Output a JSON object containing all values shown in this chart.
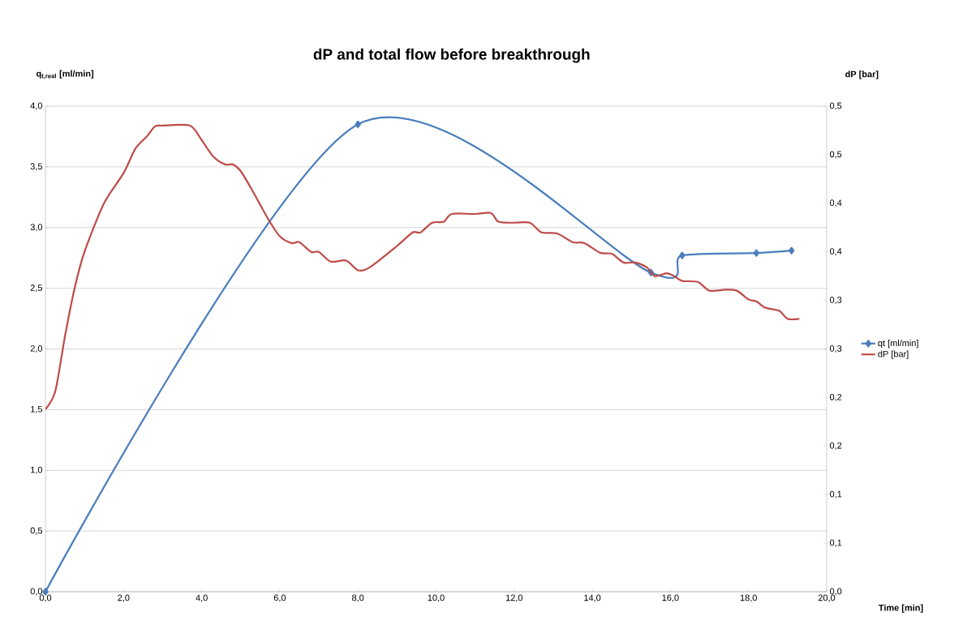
{
  "chart_data": {
    "type": "line",
    "title": "dP and total flow before breakthrough",
    "xlabel": "Time [min]",
    "ylabel": "q$_{t,real}$ [ml/min]",
    "y2label": "dP [bar]",
    "xlim": [
      0,
      20
    ],
    "ylim": [
      0,
      4
    ],
    "y2lim": [
      0,
      0.5
    ],
    "xticks": [
      {
        "value": 0,
        "label": "0,0"
      },
      {
        "value": 2,
        "label": "2,0"
      },
      {
        "value": 4,
        "label": "4,0"
      },
      {
        "value": 6,
        "label": "6,0"
      },
      {
        "value": 8,
        "label": "8,0"
      },
      {
        "value": 10,
        "label": "10,0"
      },
      {
        "value": 12,
        "label": "12,0"
      },
      {
        "value": 14,
        "label": "14,0"
      },
      {
        "value": 16,
        "label": "16,0"
      },
      {
        "value": 18,
        "label": "18,0"
      },
      {
        "value": 20,
        "label": "20,0"
      }
    ],
    "yticks": [
      {
        "value": 0,
        "label": "0,0"
      },
      {
        "value": 0.5,
        "label": "0,5"
      },
      {
        "value": 1,
        "label": "1,0"
      },
      {
        "value": 1.5,
        "label": "1,5"
      },
      {
        "value": 2,
        "label": "2,0"
      },
      {
        "value": 2.5,
        "label": "2,5"
      },
      {
        "value": 3,
        "label": "3,0"
      },
      {
        "value": 3.5,
        "label": "3,5"
      },
      {
        "value": 4,
        "label": "4,0"
      }
    ],
    "y2ticks": [
      {
        "value": 0,
        "label": "0,0"
      },
      {
        "value": 0.05,
        "label": "0,1"
      },
      {
        "value": 0.1,
        "label": "0,1"
      },
      {
        "value": 0.15,
        "label": "0,2"
      },
      {
        "value": 0.2,
        "label": "0,2"
      },
      {
        "value": 0.25,
        "label": "0,3"
      },
      {
        "value": 0.3,
        "label": "0,3"
      },
      {
        "value": 0.35,
        "label": "0,4"
      },
      {
        "value": 0.4,
        "label": "0,4"
      },
      {
        "value": 0.45,
        "label": "0,5"
      },
      {
        "value": 0.5,
        "label": "0,5"
      }
    ],
    "grid": "y",
    "legend": "right",
    "series": [
      {
        "name": "qt [ml/min]",
        "color": "#4a7ebb",
        "marker": "diamond",
        "axis": "y",
        "x": [
          0,
          8,
          15.5,
          16.3,
          18.2,
          19.1
        ],
        "values": [
          0,
          3.85,
          2.63,
          2.77,
          2.79,
          2.81
        ]
      },
      {
        "name": "dP [bar]",
        "color": "#be4b48",
        "marker": "none",
        "axis": "y2",
        "x": [
          0,
          0.25,
          0.5,
          0.75,
          1.0,
          1.5,
          2.0,
          2.3,
          2.6,
          2.8,
          3.0,
          3.7,
          4.0,
          4.3,
          4.6,
          4.8,
          5.0,
          5.3,
          5.7,
          6.0,
          6.3,
          6.5,
          6.8,
          7.0,
          7.3,
          7.7,
          8.0,
          8.3,
          9.0,
          9.4,
          9.6,
          9.9,
          10.2,
          10.4,
          11.0,
          11.4,
          11.6,
          12.0,
          12.4,
          12.7,
          13.1,
          13.5,
          13.8,
          14.2,
          14.5,
          14.8,
          15.1,
          15.4,
          15.6,
          15.9,
          16.1,
          16.3,
          16.7,
          17.0,
          17.4,
          17.7,
          18.0,
          18.2,
          18.4,
          18.6,
          18.8,
          19.0,
          19.3
        ],
        "values": [
          0.188,
          0.206,
          0.263,
          0.313,
          0.35,
          0.4,
          0.431,
          0.456,
          0.469,
          0.479,
          0.48,
          0.48,
          0.465,
          0.448,
          0.44,
          0.44,
          0.433,
          0.413,
          0.384,
          0.366,
          0.359,
          0.36,
          0.35,
          0.35,
          0.34,
          0.341,
          0.331,
          0.334,
          0.356,
          0.37,
          0.37,
          0.38,
          0.381,
          0.389,
          0.389,
          0.39,
          0.381,
          0.38,
          0.38,
          0.37,
          0.369,
          0.36,
          0.359,
          0.349,
          0.348,
          0.339,
          0.339,
          0.334,
          0.325,
          0.328,
          0.325,
          0.32,
          0.319,
          0.31,
          0.311,
          0.31,
          0.301,
          0.299,
          0.293,
          0.291,
          0.289,
          0.281,
          0.281
        ]
      }
    ]
  }
}
